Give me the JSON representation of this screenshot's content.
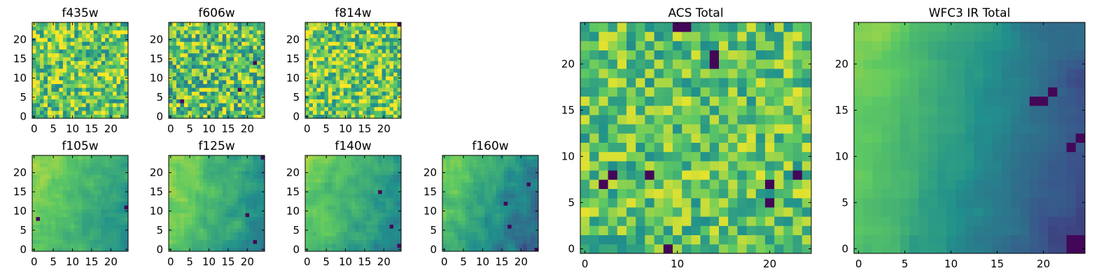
{
  "figure": {
    "colormap": "viridis",
    "colormap_stops": [
      "#440154",
      "#3b528b",
      "#21918c",
      "#5ec962",
      "#fde725"
    ]
  },
  "chart_data": [
    {
      "type": "heatmap",
      "title": "f435w",
      "grid": [
        25,
        25
      ],
      "xlim": [
        0,
        24
      ],
      "ylim": [
        0,
        24
      ],
      "xticks": [
        "0",
        "5",
        "10",
        "15",
        "20"
      ],
      "yticks": [
        "0",
        "5",
        "10",
        "15",
        "20"
      ],
      "pattern": "noise",
      "value_range": [
        0,
        1
      ],
      "mean": 0.75,
      "spread": 0.3,
      "lows": [],
      "seed": 11
    },
    {
      "type": "heatmap",
      "title": "f606w",
      "grid": [
        25,
        25
      ],
      "xlim": [
        0,
        24
      ],
      "ylim": [
        0,
        24
      ],
      "xticks": [
        "0",
        "5",
        "10",
        "15",
        "20"
      ],
      "yticks": [
        "0",
        "5",
        "10",
        "15",
        "20"
      ],
      "pattern": "noise",
      "value_range": [
        0,
        1
      ],
      "mean": 0.72,
      "spread": 0.32,
      "lows": [
        [
          18,
          7
        ],
        [
          3,
          4
        ],
        [
          22,
          14
        ]
      ],
      "seed": 23
    },
    {
      "type": "heatmap",
      "title": "f814w",
      "grid": [
        25,
        25
      ],
      "xlim": [
        0,
        24
      ],
      "ylim": [
        0,
        24
      ],
      "xticks": [
        "0",
        "5",
        "10",
        "15",
        "20"
      ],
      "yticks": [
        "0",
        "5",
        "10",
        "15",
        "20"
      ],
      "pattern": "noise",
      "value_range": [
        0,
        1
      ],
      "mean": 0.76,
      "spread": 0.3,
      "lows": [
        [
          24,
          24
        ]
      ],
      "seed": 37
    },
    {
      "type": "heatmap",
      "title": "f105w",
      "grid": [
        25,
        25
      ],
      "xlim": [
        0,
        24
      ],
      "ylim": [
        0,
        24
      ],
      "xticks": [
        "0",
        "5",
        "10",
        "15",
        "20"
      ],
      "yticks": [
        "0",
        "5",
        "10",
        "15",
        "20"
      ],
      "pattern": "smooth",
      "value_range": [
        0,
        1
      ],
      "mean": 0.66,
      "spread": 0.16,
      "gradient": [
        -0.012,
        0.004
      ],
      "lows": [
        [
          1,
          8
        ],
        [
          24,
          11
        ]
      ],
      "seed": 41
    },
    {
      "type": "heatmap",
      "title": "f125w",
      "grid": [
        25,
        25
      ],
      "xlim": [
        0,
        24
      ],
      "ylim": [
        0,
        24
      ],
      "xticks": [
        "0",
        "5",
        "10",
        "15",
        "20"
      ],
      "yticks": [
        "0",
        "5",
        "10",
        "15",
        "20"
      ],
      "pattern": "smooth",
      "value_range": [
        0,
        1
      ],
      "mean": 0.64,
      "spread": 0.18,
      "gradient": [
        -0.012,
        0.004
      ],
      "lows": [
        [
          22,
          2
        ],
        [
          20,
          9
        ],
        [
          24,
          24
        ]
      ],
      "seed": 53
    },
    {
      "type": "heatmap",
      "title": "f140w",
      "grid": [
        25,
        25
      ],
      "xlim": [
        0,
        24
      ],
      "ylim": [
        0,
        24
      ],
      "xticks": [
        "0",
        "5",
        "10",
        "15",
        "20"
      ],
      "yticks": [
        "0",
        "5",
        "10",
        "15",
        "20"
      ],
      "pattern": "smooth",
      "value_range": [
        0,
        1
      ],
      "mean": 0.63,
      "spread": 0.18,
      "gradient": [
        -0.012,
        0.004
      ],
      "lows": [
        [
          19,
          15
        ],
        [
          22,
          6
        ],
        [
          24,
          1
        ]
      ],
      "seed": 67
    },
    {
      "type": "heatmap",
      "title": "f160w",
      "grid": [
        25,
        25
      ],
      "xlim": [
        0,
        24
      ],
      "ylim": [
        0,
        24
      ],
      "xticks": [
        "0",
        "5",
        "10",
        "15",
        "20"
      ],
      "yticks": [
        "0",
        "5",
        "10",
        "15",
        "20"
      ],
      "pattern": "smooth",
      "value_range": [
        0,
        1
      ],
      "mean": 0.55,
      "spread": 0.2,
      "gradient": [
        -0.016,
        0.006
      ],
      "lows": [
        [
          16,
          12
        ],
        [
          17,
          6
        ],
        [
          22,
          17
        ],
        [
          24,
          0
        ]
      ],
      "seed": 79
    },
    {
      "type": "heatmap",
      "title": "ACS Total",
      "grid": [
        25,
        25
      ],
      "xlim": [
        0,
        24
      ],
      "ylim": [
        0,
        24
      ],
      "xticks": [
        "0",
        "10",
        "20"
      ],
      "yticks": [
        "0",
        "5",
        "10",
        "15",
        "20"
      ],
      "pattern": "noise",
      "value_range": [
        0,
        1
      ],
      "mean": 0.72,
      "spread": 0.24,
      "lows": [
        [
          10,
          24
        ],
        [
          11,
          24
        ],
        [
          14,
          21
        ],
        [
          14,
          20
        ],
        [
          7,
          8
        ],
        [
          2,
          7
        ],
        [
          20,
          5
        ],
        [
          20,
          7
        ],
        [
          23,
          8
        ],
        [
          9,
          0
        ],
        [
          3,
          8
        ]
      ],
      "seed": 97
    },
    {
      "type": "heatmap",
      "title": "WFC3 IR Total",
      "grid": [
        25,
        25
      ],
      "xlim": [
        0,
        24
      ],
      "ylim": [
        0,
        24
      ],
      "xticks": [
        "0",
        "5",
        "10",
        "15",
        "20"
      ],
      "yticks": [
        "0",
        "5",
        "10",
        "15",
        "20"
      ],
      "pattern": "smooth",
      "value_range": [
        0,
        1
      ],
      "mean": 0.5,
      "spread": 0.1,
      "gradient": [
        -0.022,
        0.005
      ],
      "lows": [
        [
          20,
          16
        ],
        [
          19,
          16
        ],
        [
          21,
          17
        ],
        [
          23,
          11
        ],
        [
          24,
          12
        ],
        [
          23,
          0
        ],
        [
          24,
          0
        ],
        [
          23,
          1
        ],
        [
          24,
          1
        ]
      ],
      "seed": 113
    }
  ]
}
